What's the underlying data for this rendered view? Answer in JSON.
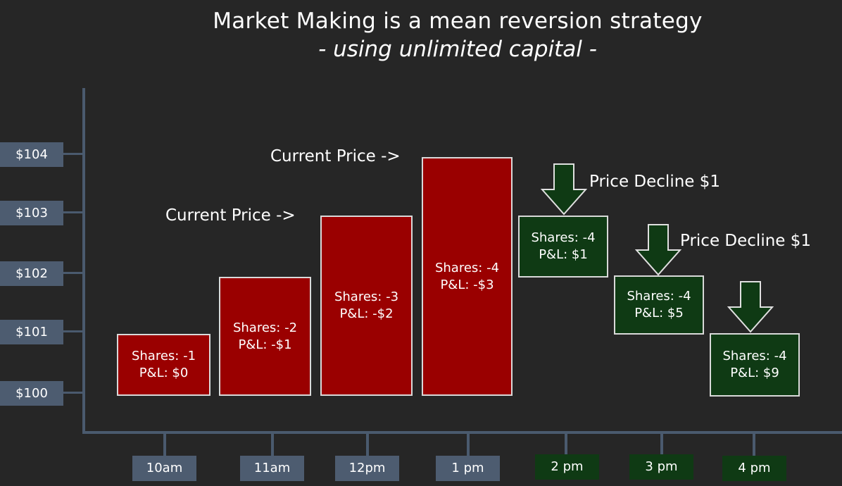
{
  "title": "Market Making is a mean reversion strategy",
  "subtitle": "- using unlimited capital -",
  "price_axis": [
    "$104",
    "$103",
    "$102",
    "$101",
    "$100"
  ],
  "time_axis": [
    {
      "label": "10am",
      "state": "up"
    },
    {
      "label": "11am",
      "state": "up"
    },
    {
      "label": "12pm",
      "state": "up"
    },
    {
      "label": "1 pm",
      "state": "up"
    },
    {
      "label": "2 pm",
      "state": "down"
    },
    {
      "label": "3 pm",
      "state": "down"
    },
    {
      "label": "4 pm",
      "state": "down"
    }
  ],
  "bars": [
    {
      "shares": "Shares: -1",
      "pnl": "P&L: $0"
    },
    {
      "shares": "Shares: -2",
      "pnl": "P&L: -$1"
    },
    {
      "shares": "Shares: -3",
      "pnl": "P&L: -$2"
    },
    {
      "shares": "Shares: -4",
      "pnl": "P&L: -$3"
    },
    {
      "shares": "Shares: -4",
      "pnl": "P&L: $1"
    },
    {
      "shares": "Shares: -4",
      "pnl": "P&L: $5"
    },
    {
      "shares": "Shares: -4",
      "pnl": "P&L: $9"
    }
  ],
  "annotations": {
    "current_price_1": "Current Price ->",
    "current_price_2": "Current Price ->",
    "decline_1": "Price Decline $1",
    "decline_2": "Price Decline $1"
  },
  "colors": {
    "background": "#262626",
    "axis": "#4a5a6e",
    "label_box": "#4d5c70",
    "rising_bar": "#9a0000",
    "falling_bar": "#0f3a14",
    "bar_border": "#d9d9d9"
  }
}
